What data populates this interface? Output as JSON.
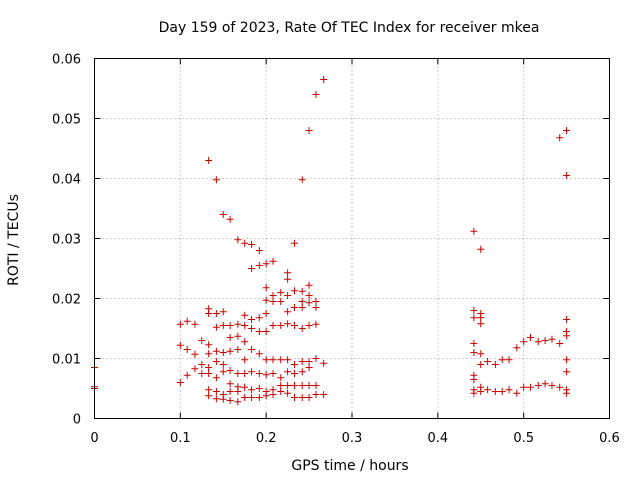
{
  "chart_data": {
    "type": "scatter",
    "title": "Day 159 of 2023, Rate Of TEC Index for receiver mkea",
    "xlabel": "GPS time / hours",
    "ylabel": "ROTI / TECUs",
    "xlim": [
      0,
      0.6
    ],
    "ylim": [
      0,
      0.06
    ],
    "x_ticks": [
      0,
      0.1,
      0.2,
      0.3,
      0.4,
      0.5,
      0.6
    ],
    "x_tick_labels": [
      "0",
      "0.1",
      "0.2",
      "0.3",
      "0.4",
      "0.5",
      "0.6"
    ],
    "y_ticks": [
      0,
      0.01,
      0.02,
      0.03,
      0.04,
      0.05,
      0.06
    ],
    "y_tick_labels": [
      "0",
      "0.01",
      "0.02",
      "0.03",
      "0.04",
      "0.05",
      "0.06"
    ],
    "grid": true,
    "marker": "+",
    "color": "#cc0000",
    "series": [
      {
        "name": "ROTI",
        "points": [
          [
            0.0,
            0.0085
          ],
          [
            0.0,
            0.0053
          ],
          [
            0.0,
            0.005
          ],
          [
            0.1,
            0.0157
          ],
          [
            0.1,
            0.0122
          ],
          [
            0.1,
            0.006
          ],
          [
            0.108,
            0.0162
          ],
          [
            0.108,
            0.0115
          ],
          [
            0.108,
            0.0072
          ],
          [
            0.117,
            0.0157
          ],
          [
            0.117,
            0.0107
          ],
          [
            0.117,
            0.0083
          ],
          [
            0.125,
            0.013
          ],
          [
            0.125,
            0.009
          ],
          [
            0.125,
            0.0075
          ],
          [
            0.133,
            0.043
          ],
          [
            0.133,
            0.0183
          ],
          [
            0.133,
            0.0175
          ],
          [
            0.133,
            0.0123
          ],
          [
            0.133,
            0.0108
          ],
          [
            0.133,
            0.0085
          ],
          [
            0.133,
            0.0075
          ],
          [
            0.133,
            0.0048
          ],
          [
            0.133,
            0.0038
          ],
          [
            0.142,
            0.0398
          ],
          [
            0.142,
            0.0175
          ],
          [
            0.142,
            0.0152
          ],
          [
            0.142,
            0.0112
          ],
          [
            0.142,
            0.0095
          ],
          [
            0.142,
            0.0068
          ],
          [
            0.142,
            0.0045
          ],
          [
            0.142,
            0.0033
          ],
          [
            0.15,
            0.034
          ],
          [
            0.15,
            0.0178
          ],
          [
            0.15,
            0.0155
          ],
          [
            0.15,
            0.011
          ],
          [
            0.15,
            0.009
          ],
          [
            0.15,
            0.0078
          ],
          [
            0.15,
            0.004
          ],
          [
            0.15,
            0.0032
          ],
          [
            0.158,
            0.0332
          ],
          [
            0.158,
            0.0155
          ],
          [
            0.158,
            0.0135
          ],
          [
            0.158,
            0.0112
          ],
          [
            0.158,
            0.008
          ],
          [
            0.158,
            0.0058
          ],
          [
            0.158,
            0.0045
          ],
          [
            0.158,
            0.003
          ],
          [
            0.167,
            0.0298
          ],
          [
            0.167,
            0.0157
          ],
          [
            0.167,
            0.0137
          ],
          [
            0.167,
            0.0115
          ],
          [
            0.167,
            0.0075
          ],
          [
            0.167,
            0.0053
          ],
          [
            0.167,
            0.0045
          ],
          [
            0.167,
            0.0028
          ],
          [
            0.175,
            0.0292
          ],
          [
            0.175,
            0.0172
          ],
          [
            0.175,
            0.0155
          ],
          [
            0.175,
            0.0128
          ],
          [
            0.175,
            0.0098
          ],
          [
            0.175,
            0.0075
          ],
          [
            0.175,
            0.0052
          ],
          [
            0.175,
            0.0035
          ],
          [
            0.183,
            0.029
          ],
          [
            0.183,
            0.025
          ],
          [
            0.183,
            0.0165
          ],
          [
            0.183,
            0.015
          ],
          [
            0.183,
            0.0115
          ],
          [
            0.183,
            0.0078
          ],
          [
            0.183,
            0.0048
          ],
          [
            0.183,
            0.0035
          ],
          [
            0.192,
            0.028
          ],
          [
            0.192,
            0.0255
          ],
          [
            0.192,
            0.0168
          ],
          [
            0.192,
            0.0145
          ],
          [
            0.192,
            0.0108
          ],
          [
            0.192,
            0.0075
          ],
          [
            0.192,
            0.005
          ],
          [
            0.192,
            0.0035
          ],
          [
            0.2,
            0.0258
          ],
          [
            0.2,
            0.0218
          ],
          [
            0.2,
            0.0197
          ],
          [
            0.2,
            0.0175
          ],
          [
            0.2,
            0.0145
          ],
          [
            0.2,
            0.0098
          ],
          [
            0.2,
            0.0073
          ],
          [
            0.2,
            0.0045
          ],
          [
            0.2,
            0.0038
          ],
          [
            0.208,
            0.0262
          ],
          [
            0.208,
            0.0205
          ],
          [
            0.208,
            0.0195
          ],
          [
            0.208,
            0.0155
          ],
          [
            0.208,
            0.0098
          ],
          [
            0.208,
            0.0075
          ],
          [
            0.208,
            0.0048
          ],
          [
            0.208,
            0.004
          ],
          [
            0.217,
            0.021
          ],
          [
            0.217,
            0.0195
          ],
          [
            0.217,
            0.0155
          ],
          [
            0.217,
            0.0098
          ],
          [
            0.217,
            0.0068
          ],
          [
            0.217,
            0.0055
          ],
          [
            0.217,
            0.0045
          ],
          [
            0.225,
            0.0243
          ],
          [
            0.225,
            0.0232
          ],
          [
            0.225,
            0.0205
          ],
          [
            0.225,
            0.0178
          ],
          [
            0.225,
            0.0158
          ],
          [
            0.225,
            0.0098
          ],
          [
            0.225,
            0.0078
          ],
          [
            0.225,
            0.0055
          ],
          [
            0.225,
            0.0042
          ],
          [
            0.233,
            0.0292
          ],
          [
            0.233,
            0.0213
          ],
          [
            0.233,
            0.0185
          ],
          [
            0.233,
            0.0155
          ],
          [
            0.233,
            0.009
          ],
          [
            0.233,
            0.0075
          ],
          [
            0.233,
            0.0055
          ],
          [
            0.233,
            0.0035
          ],
          [
            0.242,
            0.0398
          ],
          [
            0.242,
            0.0212
          ],
          [
            0.242,
            0.0195
          ],
          [
            0.242,
            0.0185
          ],
          [
            0.242,
            0.015
          ],
          [
            0.242,
            0.0095
          ],
          [
            0.242,
            0.0078
          ],
          [
            0.242,
            0.0055
          ],
          [
            0.242,
            0.0035
          ],
          [
            0.25,
            0.048
          ],
          [
            0.25,
            0.0222
          ],
          [
            0.25,
            0.0205
          ],
          [
            0.25,
            0.0193
          ],
          [
            0.25,
            0.0155
          ],
          [
            0.25,
            0.0095
          ],
          [
            0.25,
            0.0085
          ],
          [
            0.25,
            0.0055
          ],
          [
            0.25,
            0.0035
          ],
          [
            0.258,
            0.054
          ],
          [
            0.258,
            0.0195
          ],
          [
            0.258,
            0.0185
          ],
          [
            0.258,
            0.0157
          ],
          [
            0.258,
            0.01
          ],
          [
            0.258,
            0.0055
          ],
          [
            0.258,
            0.004
          ],
          [
            0.267,
            0.0565
          ],
          [
            0.267,
            0.0092
          ],
          [
            0.267,
            0.004
          ],
          [
            0.442,
            0.0312
          ],
          [
            0.442,
            0.018
          ],
          [
            0.442,
            0.0168
          ],
          [
            0.442,
            0.0125
          ],
          [
            0.442,
            0.011
          ],
          [
            0.442,
            0.0072
          ],
          [
            0.442,
            0.0065
          ],
          [
            0.442,
            0.0048
          ],
          [
            0.442,
            0.0042
          ],
          [
            0.45,
            0.0282
          ],
          [
            0.45,
            0.0175
          ],
          [
            0.45,
            0.0168
          ],
          [
            0.45,
            0.0158
          ],
          [
            0.45,
            0.0108
          ],
          [
            0.45,
            0.009
          ],
          [
            0.45,
            0.0052
          ],
          [
            0.45,
            0.0045
          ],
          [
            0.458,
            0.0095
          ],
          [
            0.458,
            0.0048
          ],
          [
            0.467,
            0.009
          ],
          [
            0.467,
            0.0045
          ],
          [
            0.475,
            0.0098
          ],
          [
            0.475,
            0.0045
          ],
          [
            0.483,
            0.0098
          ],
          [
            0.483,
            0.0048
          ],
          [
            0.492,
            0.0118
          ],
          [
            0.492,
            0.0042
          ],
          [
            0.5,
            0.0128
          ],
          [
            0.5,
            0.0052
          ],
          [
            0.508,
            0.0135
          ],
          [
            0.508,
            0.0052
          ],
          [
            0.517,
            0.0128
          ],
          [
            0.517,
            0.0055
          ],
          [
            0.525,
            0.013
          ],
          [
            0.525,
            0.0058
          ],
          [
            0.533,
            0.0132
          ],
          [
            0.533,
            0.0055
          ],
          [
            0.542,
            0.0468
          ],
          [
            0.542,
            0.0125
          ],
          [
            0.542,
            0.0052
          ],
          [
            0.55,
            0.048
          ],
          [
            0.55,
            0.0405
          ],
          [
            0.55,
            0.0165
          ],
          [
            0.55,
            0.0145
          ],
          [
            0.55,
            0.0138
          ],
          [
            0.55,
            0.0098
          ],
          [
            0.55,
            0.0078
          ],
          [
            0.55,
            0.0048
          ],
          [
            0.55,
            0.0042
          ]
        ]
      }
    ]
  }
}
